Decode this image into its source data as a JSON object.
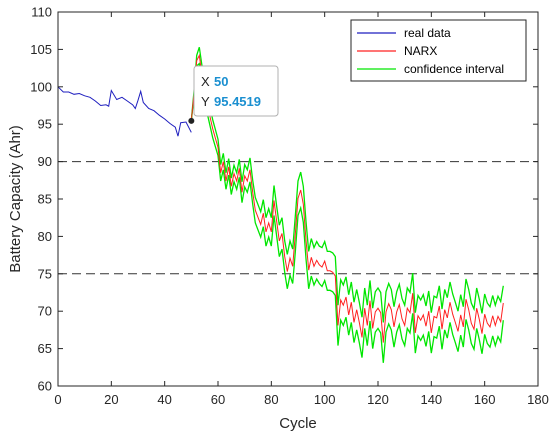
{
  "chart_data": {
    "type": "line",
    "xlabel": "Cycle",
    "ylabel": "Battery Capacity (Ahr)",
    "xlim": [
      0,
      180
    ],
    "ylim": [
      60,
      110
    ],
    "xticks": [
      0,
      20,
      40,
      60,
      80,
      100,
      120,
      140,
      160,
      180
    ],
    "yticks": [
      60,
      65,
      70,
      75,
      80,
      85,
      90,
      95,
      100,
      105,
      110
    ],
    "grid": false,
    "legend_position": "top-right",
    "reference_lines": [
      90,
      75
    ],
    "colors": {
      "real": "#1f1fbf",
      "narx": "#ff2020",
      "ci": "#00e600",
      "ref": "#333333"
    },
    "series": [
      {
        "name": "real data",
        "x": [
          0,
          2,
          4,
          6,
          8,
          10,
          12,
          14,
          16,
          18,
          19,
          20,
          22,
          24,
          26,
          28,
          29,
          30,
          31,
          32,
          34,
          36,
          38,
          40,
          42,
          44,
          45,
          46,
          48,
          50
        ],
        "y": [
          100,
          99.3,
          99.3,
          99,
          99.1,
          98.8,
          98.6,
          98.1,
          97.5,
          97.6,
          97.4,
          99.5,
          98.3,
          98.6,
          98.1,
          97.6,
          97.1,
          98.2,
          99.4,
          97.9,
          97.1,
          96.8,
          96.2,
          95.7,
          95.1,
          94.6,
          93.4,
          95.2,
          95.3,
          93.9
        ]
      },
      {
        "name": "NARX",
        "x": [
          50,
          51,
          52,
          53,
          54,
          56,
          58,
          60,
          61,
          62,
          63,
          64,
          65,
          66,
          67,
          68,
          69,
          70,
          71,
          72,
          73,
          74,
          76,
          77,
          78,
          79,
          80,
          81,
          82,
          83,
          84,
          85,
          86,
          87,
          88,
          89,
          90,
          91,
          92,
          93,
          94,
          95,
          96,
          97,
          98,
          99,
          100,
          101,
          102,
          103,
          104,
          105,
          106,
          107,
          108,
          109,
          110,
          111,
          112,
          113,
          114,
          115,
          116,
          117,
          118,
          119,
          120,
          121,
          122,
          123,
          124,
          125,
          126,
          127,
          128,
          129,
          130,
          131,
          132,
          133,
          134,
          135,
          136,
          137,
          138,
          139,
          140,
          141,
          142,
          143,
          144,
          145,
          146,
          147,
          148,
          149,
          150,
          151,
          152,
          153,
          154,
          155,
          156,
          157,
          158,
          159,
          160,
          161,
          162,
          163,
          164,
          165,
          166,
          167
        ],
        "y": [
          95.5,
          99,
          103.5,
          104.2,
          101.5,
          97.6,
          94.4,
          91.9,
          88.5,
          90,
          87.4,
          89.3,
          86.7,
          88.4,
          87.4,
          89.1,
          85.9,
          88.1,
          87.4,
          88.9,
          85.9,
          83.5,
          81.6,
          83.1,
          80.6,
          81.8,
          80.6,
          84.8,
          82,
          79.4,
          80.4,
          77.3,
          75.3,
          77.1,
          76,
          80.3,
          85.1,
          86.2,
          84.3,
          79.5,
          75.5,
          77.2,
          76,
          76.8,
          76.2,
          75.9,
          76.7,
          75.4,
          75.4,
          75.2,
          74.7,
          68.1,
          71.5,
          70.8,
          71.9,
          69.5,
          71.2,
          68.5,
          70.2,
          68.5,
          66.5,
          70.4,
          68.1,
          71.4,
          67.7,
          69.9,
          70.4,
          69.8,
          65.8,
          69.9,
          71,
          70.2,
          67.9,
          69.9,
          70.9,
          69,
          68.1,
          70.4,
          69.8,
          72.4,
          67.1,
          69.4,
          68.8,
          69.5,
          68,
          70,
          67.1,
          69.3,
          69.1,
          70.7,
          67.6,
          70.2,
          69.1,
          71.2,
          69.6,
          68.5,
          67.3,
          69.5,
          67.9,
          71.6,
          70.2,
          68.4,
          67.6,
          70.4,
          68.9,
          67,
          69.6,
          68.4,
          67.9,
          69.4,
          68.1,
          69.3,
          68.6,
          71.1
        ]
      },
      {
        "name": "confidence interval",
        "x": [
          50,
          51,
          52,
          53,
          54,
          56,
          58,
          60,
          61,
          62,
          63,
          64,
          65,
          66,
          67,
          68,
          69,
          70,
          71,
          72,
          73,
          74,
          76,
          77,
          78,
          79,
          80,
          81,
          82,
          83,
          84,
          85,
          86,
          87,
          88,
          89,
          90,
          91,
          92,
          93,
          94,
          95,
          96,
          97,
          98,
          99,
          100,
          101,
          102,
          103,
          104,
          105,
          106,
          107,
          108,
          109,
          110,
          111,
          112,
          113,
          114,
          115,
          116,
          117,
          118,
          119,
          120,
          121,
          122,
          123,
          124,
          125,
          126,
          127,
          128,
          129,
          130,
          131,
          132,
          133,
          134,
          135,
          136,
          137,
          138,
          139,
          140,
          141,
          142,
          143,
          144,
          145,
          146,
          147,
          148,
          149,
          150,
          151,
          152,
          153,
          154,
          155,
          156,
          157,
          158,
          159,
          160,
          161,
          162,
          163,
          164,
          165,
          166,
          167
        ],
        "upper": [
          95.5,
          99.4,
          104.2,
          105.3,
          102.8,
          98.8,
          95.6,
          93,
          89.6,
          91.1,
          88.5,
          90.4,
          87.8,
          89.5,
          88.5,
          90.3,
          87.3,
          89.6,
          88.9,
          90.5,
          87.5,
          85.2,
          83.3,
          84.9,
          82.5,
          83.7,
          82.5,
          86.8,
          84,
          81.5,
          82.5,
          79.4,
          77.6,
          79.4,
          78.3,
          82.7,
          87.4,
          88.6,
          86.7,
          82,
          78,
          79.7,
          78.5,
          79.3,
          78.7,
          78.5,
          79.3,
          78,
          78,
          77.8,
          77.3,
          70.8,
          74.2,
          73.5,
          74.6,
          72.2,
          73.9,
          71.2,
          72.9,
          71.2,
          69.2,
          73.1,
          70.8,
          74.1,
          70.4,
          72.6,
          73.1,
          72.5,
          68.5,
          72.6,
          73.7,
          72.9,
          70.6,
          72.6,
          73.6,
          71.7,
          70.8,
          73.1,
          72.5,
          75.1,
          69.8,
          72.1,
          71.5,
          72.2,
          70.7,
          72.7,
          69.8,
          72,
          71.8,
          73.4,
          70.3,
          72.9,
          71.8,
          73.9,
          72.3,
          71.2,
          70,
          72.2,
          70.6,
          74.3,
          72.9,
          71.1,
          70.3,
          73.1,
          71.6,
          69.7,
          72.3,
          71.1,
          70.6,
          72.1,
          70.8,
          72,
          71.3,
          73.4
        ],
        "lower": [
          95.5,
          98.6,
          102.8,
          103.1,
          100.2,
          96.4,
          93.2,
          90.8,
          87.4,
          88.9,
          86.3,
          88.2,
          85.6,
          87.3,
          86.3,
          87.9,
          84.5,
          86.6,
          85.9,
          87.3,
          84.3,
          81.8,
          79.9,
          81.3,
          78.7,
          79.9,
          78.7,
          82.8,
          80,
          77.3,
          78.3,
          75.2,
          73,
          74.8,
          73.7,
          77.9,
          82.8,
          83.8,
          81.9,
          77,
          73,
          74.7,
          73.5,
          74.3,
          73.7,
          73.3,
          74.1,
          72.8,
          72.8,
          72.6,
          72.1,
          65.4,
          68.8,
          68.1,
          69.2,
          66.8,
          68.5,
          65.8,
          67.5,
          65.8,
          63.8,
          67.7,
          65.4,
          68.7,
          65,
          67.2,
          67.7,
          67.1,
          63.1,
          67.2,
          68.3,
          67.5,
          65.2,
          67.2,
          68.2,
          66.3,
          65.4,
          67.7,
          67.1,
          69.7,
          64.4,
          66.7,
          66.1,
          66.8,
          65.3,
          67.3,
          64.4,
          66.6,
          66.4,
          68,
          64.9,
          67.5,
          66.4,
          68.5,
          66.9,
          65.8,
          64.6,
          66.8,
          65.2,
          68.9,
          67.5,
          65.7,
          64.9,
          67.7,
          66.2,
          64.3,
          66.9,
          65.7,
          65.2,
          66.7,
          65.4,
          66.6,
          65.9,
          68.8
        ]
      }
    ],
    "datatip": {
      "x_key": "X",
      "x_value": "50",
      "y_key": "Y",
      "y_value": "95.4519",
      "point": [
        50,
        95.4519
      ]
    }
  }
}
